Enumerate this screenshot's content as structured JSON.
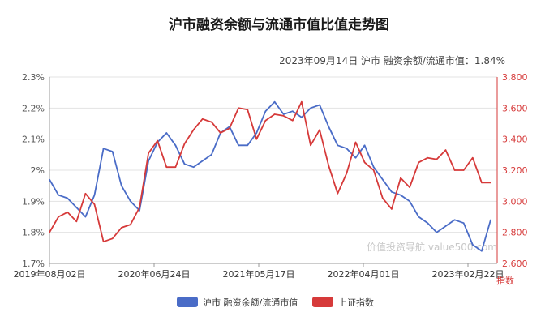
{
  "chart_data": {
    "type": "line",
    "title": "沪市融资余额与流通市值比值走势图",
    "subtitle": "2023年09月14日 沪市 融资余额/流通市值：1.84%",
    "watermark": "价值投资导航 value500.com",
    "x_tick_labels": [
      "2019年08月02日",
      "2020年06月24日",
      "2021年05月17日",
      "2022年04月01日",
      "2023年02月22日"
    ],
    "y_left": {
      "ticks": [
        "1.7%",
        "1.8%",
        "1.9%",
        "2%",
        "2.1%",
        "2.2%",
        "2.3%"
      ],
      "range": [
        1.7,
        2.3
      ]
    },
    "y_right": {
      "ticks": [
        "2,600",
        "2,800",
        "3,000",
        "3,200",
        "3,400",
        "3,600",
        "3,800"
      ],
      "range": [
        2600,
        3800
      ],
      "label": "指数"
    },
    "grid": true,
    "legend_position": "bottom",
    "series": [
      {
        "name": "沪市 融资余额/流通市值",
        "axis": "left",
        "color": "#4a6cc7",
        "x": [
          "2019-08",
          "2019-09",
          "2019-10",
          "2019-11",
          "2019-12",
          "2020-01",
          "2020-02",
          "2020-03",
          "2020-04",
          "2020-05",
          "2020-06",
          "2020-07",
          "2020-08",
          "2020-09",
          "2020-10",
          "2020-11",
          "2020-12",
          "2021-01",
          "2021-02",
          "2021-03",
          "2021-04",
          "2021-05",
          "2021-06",
          "2021-07",
          "2021-08",
          "2021-09",
          "2021-10",
          "2021-11",
          "2021-12",
          "2022-01",
          "2022-02",
          "2022-03",
          "2022-04",
          "2022-05",
          "2022-06",
          "2022-07",
          "2022-08",
          "2022-09",
          "2022-10",
          "2022-11",
          "2022-12",
          "2023-01",
          "2023-02",
          "2023-03",
          "2023-04",
          "2023-05",
          "2023-06",
          "2023-07",
          "2023-08",
          "2023-09"
        ],
        "values": [
          1.97,
          1.92,
          1.91,
          1.88,
          1.85,
          1.92,
          2.07,
          2.06,
          1.95,
          1.9,
          1.87,
          2.03,
          2.09,
          2.12,
          2.08,
          2.02,
          2.01,
          2.03,
          2.05,
          2.12,
          2.14,
          2.08,
          2.08,
          2.12,
          2.19,
          2.22,
          2.18,
          2.19,
          2.17,
          2.2,
          2.21,
          2.14,
          2.08,
          2.07,
          2.04,
          2.08,
          2.01,
          1.97,
          1.93,
          1.92,
          1.9,
          1.85,
          1.83,
          1.8,
          1.82,
          1.84,
          1.83,
          1.76,
          1.74,
          1.84
        ]
      },
      {
        "name": "上证指数",
        "axis": "right",
        "color": "#d63a3a",
        "x": [
          "2019-08",
          "2019-09",
          "2019-10",
          "2019-11",
          "2019-12",
          "2020-01",
          "2020-02",
          "2020-03",
          "2020-04",
          "2020-05",
          "2020-06",
          "2020-07",
          "2020-08",
          "2020-09",
          "2020-10",
          "2020-11",
          "2020-12",
          "2021-01",
          "2021-02",
          "2021-03",
          "2021-04",
          "2021-05",
          "2021-06",
          "2021-07",
          "2021-08",
          "2021-09",
          "2021-10",
          "2021-11",
          "2021-12",
          "2022-01",
          "2022-02",
          "2022-03",
          "2022-04",
          "2022-05",
          "2022-06",
          "2022-07",
          "2022-08",
          "2022-09",
          "2022-10",
          "2022-11",
          "2022-12",
          "2023-01",
          "2023-02",
          "2023-03",
          "2023-04",
          "2023-05",
          "2023-06",
          "2023-07",
          "2023-08",
          "2023-09"
        ],
        "values": [
          2800,
          2900,
          2930,
          2870,
          3050,
          2980,
          2740,
          2760,
          2830,
          2850,
          2960,
          3310,
          3390,
          3220,
          3220,
          3370,
          3460,
          3530,
          3510,
          3440,
          3470,
          3600,
          3590,
          3400,
          3520,
          3560,
          3550,
          3520,
          3640,
          3360,
          3460,
          3230,
          3050,
          3180,
          3380,
          3250,
          3200,
          3020,
          2950,
          3150,
          3090,
          3250,
          3280,
          3270,
          3330,
          3200,
          3200,
          3280,
          3120,
          3120
        ]
      }
    ]
  }
}
